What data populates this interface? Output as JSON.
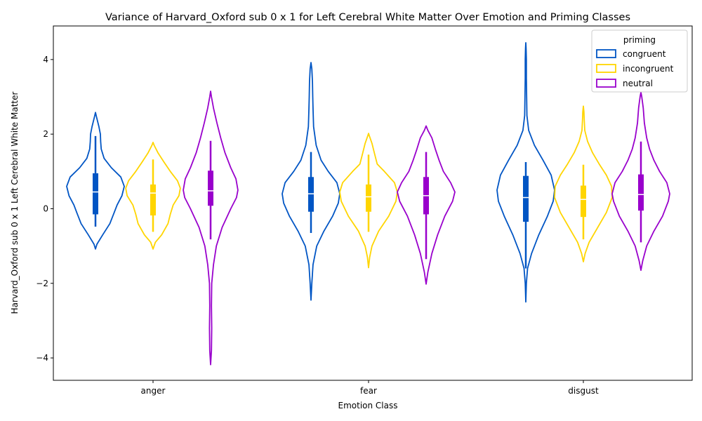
{
  "chart_data": {
    "type": "violin",
    "title": "Variance of Harvard_Oxford sub 0 x 1 for Left Cerebral White Matter Over Emotion and Priming Classes",
    "xlabel": "Emotion Class",
    "ylabel": "Harvard_Oxford sub 0 x 1 Left Cerebral White Matter",
    "categories": [
      "anger",
      "fear",
      "disgust"
    ],
    "ylim": [
      -4.6,
      4.9
    ],
    "yticks": [
      -4,
      -2,
      0,
      2,
      4
    ],
    "yticks_labels": [
      "−4",
      "−2",
      "0",
      "2",
      "4"
    ],
    "grid": false,
    "legend": {
      "title": "priming",
      "position": "top-right"
    },
    "series": [
      {
        "name": "congruent",
        "color": "#0055c4",
        "violins": [
          {
            "category": "anger",
            "min": -1.08,
            "max": 2.58,
            "q1": -0.15,
            "median": 0.45,
            "q3": 0.95,
            "whisker_low": -0.48,
            "whisker_high": 1.95,
            "profile": [
              [
                -1.08,
                0
              ],
              [
                -0.95,
                0.05
              ],
              [
                -0.7,
                0.25
              ],
              [
                -0.4,
                0.5
              ],
              [
                -0.1,
                0.65
              ],
              [
                0.1,
                0.75
              ],
              [
                0.35,
                0.92
              ],
              [
                0.6,
                1.0
              ],
              [
                0.85,
                0.88
              ],
              [
                1.1,
                0.55
              ],
              [
                1.35,
                0.3
              ],
              [
                1.6,
                0.2
              ],
              [
                1.8,
                0.18
              ],
              [
                2.0,
                0.17
              ],
              [
                2.2,
                0.12
              ],
              [
                2.45,
                0.04
              ],
              [
                2.58,
                0
              ]
            ]
          },
          {
            "category": "fear",
            "min": -2.45,
            "max": 3.92,
            "q1": -0.08,
            "median": 0.4,
            "q3": 0.85,
            "whisker_low": -0.65,
            "whisker_high": 1.52,
            "profile": [
              [
                -2.45,
                0
              ],
              [
                -2.0,
                0.03
              ],
              [
                -1.5,
                0.07
              ],
              [
                -1.0,
                0.2
              ],
              [
                -0.6,
                0.45
              ],
              [
                -0.2,
                0.75
              ],
              [
                0.15,
                0.95
              ],
              [
                0.4,
                1.0
              ],
              [
                0.7,
                0.9
              ],
              [
                1.0,
                0.6
              ],
              [
                1.3,
                0.35
              ],
              [
                1.7,
                0.18
              ],
              [
                2.2,
                0.09
              ],
              [
                2.7,
                0.07
              ],
              [
                3.0,
                0.06
              ],
              [
                3.4,
                0.05
              ],
              [
                3.75,
                0.03
              ],
              [
                3.92,
                0
              ]
            ]
          },
          {
            "category": "disgust",
            "min": -2.5,
            "max": 4.45,
            "q1": -0.35,
            "median": 0.3,
            "q3": 0.88,
            "whisker_low": -1.6,
            "whisker_high": 1.25,
            "profile": [
              [
                -2.5,
                0
              ],
              [
                -2.0,
                0.02
              ],
              [
                -1.6,
                0.06
              ],
              [
                -1.2,
                0.2
              ],
              [
                -0.7,
                0.45
              ],
              [
                -0.2,
                0.75
              ],
              [
                0.2,
                0.95
              ],
              [
                0.5,
                1.0
              ],
              [
                0.9,
                0.88
              ],
              [
                1.3,
                0.6
              ],
              [
                1.7,
                0.3
              ],
              [
                2.1,
                0.1
              ],
              [
                2.5,
                0.04
              ],
              [
                3.0,
                0.03
              ],
              [
                3.5,
                0.02
              ],
              [
                4.0,
                0.02
              ],
              [
                4.3,
                0.01
              ],
              [
                4.45,
                0
              ]
            ]
          }
        ]
      },
      {
        "name": "incongruent",
        "color": "#ffd500",
        "violins": [
          {
            "category": "anger",
            "min": -1.08,
            "max": 1.78,
            "q1": -0.18,
            "median": 0.42,
            "q3": 0.65,
            "whisker_low": -0.62,
            "whisker_high": 1.32,
            "profile": [
              [
                -1.08,
                0
              ],
              [
                -0.9,
                0.08
              ],
              [
                -0.7,
                0.3
              ],
              [
                -0.4,
                0.52
              ],
              [
                -0.15,
                0.6
              ],
              [
                0.1,
                0.7
              ],
              [
                0.35,
                0.9
              ],
              [
                0.55,
                0.95
              ],
              [
                0.75,
                0.85
              ],
              [
                1.0,
                0.6
              ],
              [
                1.25,
                0.38
              ],
              [
                1.5,
                0.17
              ],
              [
                1.7,
                0.04
              ],
              [
                1.78,
                0
              ]
            ]
          },
          {
            "category": "fear",
            "min": -1.58,
            "max": 2.02,
            "q1": -0.08,
            "median": 0.32,
            "q3": 0.65,
            "whisker_low": -0.62,
            "whisker_high": 1.45,
            "profile": [
              [
                -1.58,
                0
              ],
              [
                -1.3,
                0.04
              ],
              [
                -1.0,
                0.12
              ],
              [
                -0.6,
                0.35
              ],
              [
                -0.2,
                0.7
              ],
              [
                0.2,
                0.95
              ],
              [
                0.45,
                1.0
              ],
              [
                0.7,
                0.9
              ],
              [
                1.0,
                0.55
              ],
              [
                1.2,
                0.3
              ],
              [
                1.5,
                0.2
              ],
              [
                1.75,
                0.12
              ],
              [
                1.95,
                0.03
              ],
              [
                2.02,
                0
              ]
            ]
          },
          {
            "category": "disgust",
            "min": -1.42,
            "max": 2.75,
            "q1": -0.22,
            "median": 0.25,
            "q3": 0.62,
            "whisker_low": -0.82,
            "whisker_high": 1.18,
            "profile": [
              [
                -1.42,
                0
              ],
              [
                -1.2,
                0.06
              ],
              [
                -0.9,
                0.2
              ],
              [
                -0.5,
                0.5
              ],
              [
                -0.1,
                0.8
              ],
              [
                0.3,
                1.0
              ],
              [
                0.6,
                0.98
              ],
              [
                0.9,
                0.8
              ],
              [
                1.2,
                0.55
              ],
              [
                1.5,
                0.32
              ],
              [
                1.8,
                0.15
              ],
              [
                2.1,
                0.05
              ],
              [
                2.4,
                0.03
              ],
              [
                2.6,
                0.02
              ],
              [
                2.75,
                0
              ]
            ]
          }
        ]
      },
      {
        "name": "neutral",
        "color": "#9900cc",
        "violins": [
          {
            "category": "anger",
            "min": -4.18,
            "max": 3.15,
            "q1": 0.08,
            "median": 0.48,
            "q3": 1.02,
            "whisker_low": -0.82,
            "whisker_high": 1.82,
            "profile": [
              [
                -4.18,
                0
              ],
              [
                -3.8,
                0.03
              ],
              [
                -3.2,
                0.04
              ],
              [
                -2.6,
                0.03
              ],
              [
                -2.0,
                0.04
              ],
              [
                -1.5,
                0.1
              ],
              [
                -1.0,
                0.2
              ],
              [
                -0.5,
                0.4
              ],
              [
                0.0,
                0.7
              ],
              [
                0.3,
                0.9
              ],
              [
                0.5,
                0.95
              ],
              [
                0.8,
                0.88
              ],
              [
                1.1,
                0.7
              ],
              [
                1.5,
                0.5
              ],
              [
                1.9,
                0.35
              ],
              [
                2.3,
                0.22
              ],
              [
                2.7,
                0.1
              ],
              [
                3.0,
                0.03
              ],
              [
                3.15,
                0
              ]
            ]
          },
          {
            "category": "fear",
            "min": -2.02,
            "max": 2.22,
            "q1": -0.15,
            "median": 0.35,
            "q3": 0.85,
            "whisker_low": -1.35,
            "whisker_high": 1.52,
            "profile": [
              [
                -2.02,
                0
              ],
              [
                -1.7,
                0.06
              ],
              [
                -1.2,
                0.2
              ],
              [
                -0.7,
                0.4
              ],
              [
                -0.2,
                0.65
              ],
              [
                0.2,
                0.92
              ],
              [
                0.45,
                1.0
              ],
              [
                0.7,
                0.85
              ],
              [
                1.0,
                0.6
              ],
              [
                1.3,
                0.45
              ],
              [
                1.6,
                0.32
              ],
              [
                1.9,
                0.2
              ],
              [
                2.1,
                0.06
              ],
              [
                2.22,
                0
              ]
            ]
          },
          {
            "category": "disgust",
            "min": -1.65,
            "max": 3.12,
            "q1": -0.05,
            "median": 0.38,
            "q3": 0.92,
            "whisker_low": -0.9,
            "whisker_high": 1.8,
            "profile": [
              [
                -1.65,
                0
              ],
              [
                -1.4,
                0.06
              ],
              [
                -1.0,
                0.2
              ],
              [
                -0.6,
                0.45
              ],
              [
                -0.2,
                0.75
              ],
              [
                0.2,
                0.95
              ],
              [
                0.4,
                1.0
              ],
              [
                0.7,
                0.9
              ],
              [
                1.0,
                0.65
              ],
              [
                1.3,
                0.45
              ],
              [
                1.6,
                0.3
              ],
              [
                1.9,
                0.2
              ],
              [
                2.3,
                0.12
              ],
              [
                2.7,
                0.08
              ],
              [
                3.0,
                0.03
              ],
              [
                3.12,
                0
              ]
            ]
          }
        ]
      }
    ]
  }
}
